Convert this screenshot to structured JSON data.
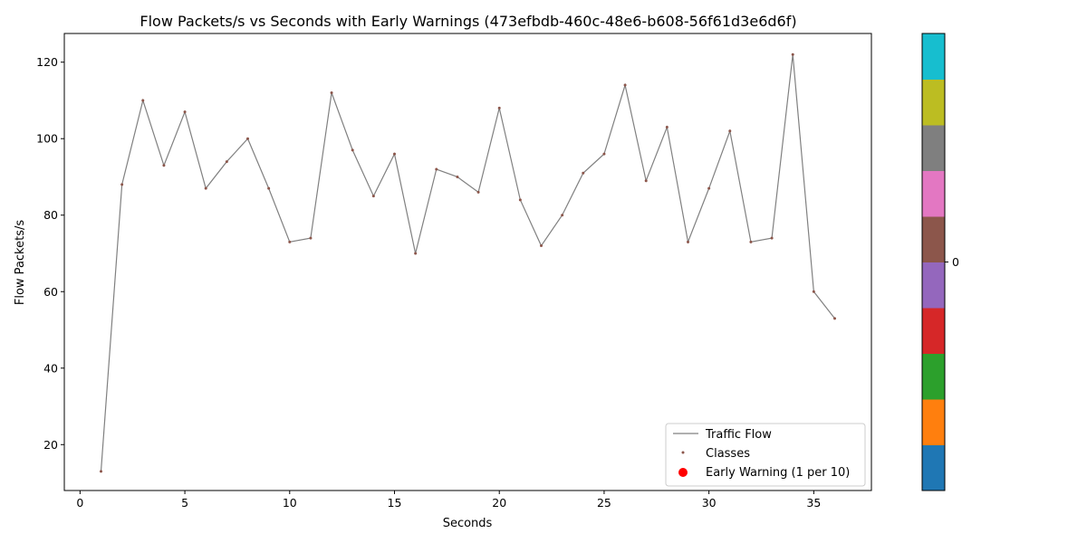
{
  "chart_data": {
    "type": "line",
    "title": "Flow Packets/s vs Seconds with Early Warnings (473efbdb-460c-48e6-b608-56f61d3e6d6f)",
    "xlabel": "Seconds",
    "ylabel": "Flow Packets/s",
    "xlim": [
      -0.75,
      37.75
    ],
    "ylim": [
      8,
      127.5
    ],
    "xticks": [
      0,
      5,
      10,
      15,
      20,
      25,
      30,
      35
    ],
    "yticks": [
      20,
      40,
      60,
      80,
      100,
      120
    ],
    "grid": false,
    "legend_position": "lower-right",
    "series": [
      {
        "name": "Traffic Flow",
        "style": "line",
        "color": "#808080",
        "x": [
          1,
          2,
          3,
          4,
          5,
          6,
          7,
          8,
          9,
          10,
          11,
          12,
          13,
          14,
          15,
          16,
          17,
          18,
          19,
          20,
          21,
          22,
          23,
          24,
          25,
          26,
          27,
          28,
          29,
          30,
          31,
          32,
          33,
          34,
          35,
          36
        ],
        "y": [
          13,
          88,
          110,
          93,
          107,
          87,
          94,
          100,
          87,
          73,
          74,
          112,
          97,
          85,
          96,
          70,
          92,
          90,
          86,
          108,
          84,
          72,
          80,
          91,
          96,
          114,
          89,
          103,
          73,
          87,
          102,
          73,
          74,
          122,
          60,
          53
        ]
      },
      {
        "name": "Classes",
        "style": "scatter",
        "color": "#8c564b"
      },
      {
        "name": "Early Warning (1 per 10)",
        "style": "scatter",
        "color": "#ff0000",
        "x": [],
        "y": []
      }
    ],
    "colorbar": {
      "colors": [
        "#1f77b4",
        "#ff7f0e",
        "#2ca02c",
        "#d62728",
        "#9467bd",
        "#8c564b",
        "#e377c2",
        "#7f7f7f",
        "#bcbd22",
        "#17becf"
      ],
      "tick_labels": [
        "0"
      ]
    }
  }
}
